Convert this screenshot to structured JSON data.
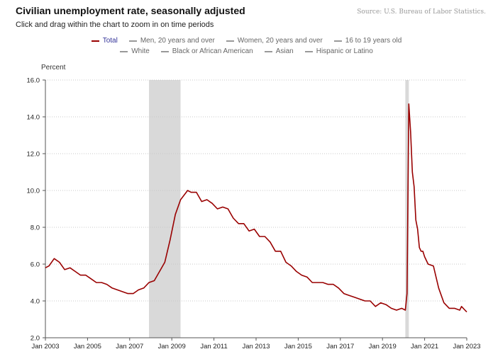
{
  "header": {
    "title": "Civilian unemployment rate, seasonally adjusted",
    "subtitle": "Click and drag within the chart to zoom in on time periods",
    "source": "Source: U.S. Bureau of Labor Statistics."
  },
  "legend": {
    "row1": [
      "Total",
      "Men, 20 years and over",
      "Women, 20 years and over",
      "16 to 19 years old"
    ],
    "row2": [
      "White",
      "Black or African American",
      "Asian",
      "Hispanic or Latino"
    ]
  },
  "colors": {
    "series": "#990000",
    "recession": "#d9d9d9",
    "grid": "#c8c8c8",
    "active_legend": "#333399"
  },
  "chart_data": {
    "type": "line",
    "ylabel": "Percent",
    "xlabel": "",
    "ylim": [
      2.0,
      16.0
    ],
    "y_ticks": [
      "2.0",
      "4.0",
      "6.0",
      "8.0",
      "10.0",
      "12.0",
      "14.0",
      "16.0"
    ],
    "x_ticks": [
      "Jan 2003",
      "Jan 2005",
      "Jan 2007",
      "Jan 2009",
      "Jan 2011",
      "Jan 2013",
      "Jan 2015",
      "Jan 2017",
      "Jan 2019",
      "Jan 2021",
      "Jan 2023"
    ],
    "xlim": [
      "2003-01",
      "2023-01"
    ],
    "grid": "horizontal dotted",
    "recessions": [
      [
        "2007-12",
        "2009-06"
      ],
      [
        "2020-02",
        "2020-04"
      ]
    ],
    "series": [
      {
        "name": "Total",
        "points": [
          [
            "2003-01",
            5.8
          ],
          [
            "2003-03",
            5.9
          ],
          [
            "2003-06",
            6.3
          ],
          [
            "2003-09",
            6.1
          ],
          [
            "2003-12",
            5.7
          ],
          [
            "2004-03",
            5.8
          ],
          [
            "2004-06",
            5.6
          ],
          [
            "2004-09",
            5.4
          ],
          [
            "2004-12",
            5.4
          ],
          [
            "2005-03",
            5.2
          ],
          [
            "2005-06",
            5.0
          ],
          [
            "2005-09",
            5.0
          ],
          [
            "2005-12",
            4.9
          ],
          [
            "2006-03",
            4.7
          ],
          [
            "2006-06",
            4.6
          ],
          [
            "2006-09",
            4.5
          ],
          [
            "2006-12",
            4.4
          ],
          [
            "2007-03",
            4.4
          ],
          [
            "2007-06",
            4.6
          ],
          [
            "2007-09",
            4.7
          ],
          [
            "2007-12",
            5.0
          ],
          [
            "2008-03",
            5.1
          ],
          [
            "2008-06",
            5.6
          ],
          [
            "2008-09",
            6.1
          ],
          [
            "2008-12",
            7.3
          ],
          [
            "2009-03",
            8.7
          ],
          [
            "2009-06",
            9.5
          ],
          [
            "2009-10",
            10.0
          ],
          [
            "2009-12",
            9.9
          ],
          [
            "2010-03",
            9.9
          ],
          [
            "2010-06",
            9.4
          ],
          [
            "2010-09",
            9.5
          ],
          [
            "2010-12",
            9.3
          ],
          [
            "2011-03",
            9.0
          ],
          [
            "2011-06",
            9.1
          ],
          [
            "2011-09",
            9.0
          ],
          [
            "2011-12",
            8.5
          ],
          [
            "2012-03",
            8.2
          ],
          [
            "2012-06",
            8.2
          ],
          [
            "2012-09",
            7.8
          ],
          [
            "2012-12",
            7.9
          ],
          [
            "2013-03",
            7.5
          ],
          [
            "2013-06",
            7.5
          ],
          [
            "2013-09",
            7.2
          ],
          [
            "2013-12",
            6.7
          ],
          [
            "2014-03",
            6.7
          ],
          [
            "2014-06",
            6.1
          ],
          [
            "2014-09",
            5.9
          ],
          [
            "2014-12",
            5.6
          ],
          [
            "2015-03",
            5.4
          ],
          [
            "2015-06",
            5.3
          ],
          [
            "2015-09",
            5.0
          ],
          [
            "2015-12",
            5.0
          ],
          [
            "2016-03",
            5.0
          ],
          [
            "2016-06",
            4.9
          ],
          [
            "2016-09",
            4.9
          ],
          [
            "2016-12",
            4.7
          ],
          [
            "2017-03",
            4.4
          ],
          [
            "2017-06",
            4.3
          ],
          [
            "2017-09",
            4.2
          ],
          [
            "2017-12",
            4.1
          ],
          [
            "2018-03",
            4.0
          ],
          [
            "2018-06",
            4.0
          ],
          [
            "2018-09",
            3.7
          ],
          [
            "2018-12",
            3.9
          ],
          [
            "2019-03",
            3.8
          ],
          [
            "2019-06",
            3.6
          ],
          [
            "2019-09",
            3.5
          ],
          [
            "2019-12",
            3.6
          ],
          [
            "2020-02",
            3.5
          ],
          [
            "2020-03",
            4.4
          ],
          [
            "2020-04",
            14.7
          ],
          [
            "2020-05",
            13.2
          ],
          [
            "2020-06",
            11.0
          ],
          [
            "2020-07",
            10.2
          ],
          [
            "2020-08",
            8.4
          ],
          [
            "2020-09",
            7.9
          ],
          [
            "2020-10",
            6.9
          ],
          [
            "2020-11",
            6.7
          ],
          [
            "2020-12",
            6.7
          ],
          [
            "2021-01",
            6.4
          ],
          [
            "2021-03",
            6.0
          ],
          [
            "2021-06",
            5.9
          ],
          [
            "2021-09",
            4.7
          ],
          [
            "2021-12",
            3.9
          ],
          [
            "2022-03",
            3.6
          ],
          [
            "2022-06",
            3.6
          ],
          [
            "2022-09",
            3.5
          ],
          [
            "2022-10",
            3.7
          ],
          [
            "2022-12",
            3.5
          ],
          [
            "2023-01",
            3.4
          ]
        ]
      }
    ]
  }
}
